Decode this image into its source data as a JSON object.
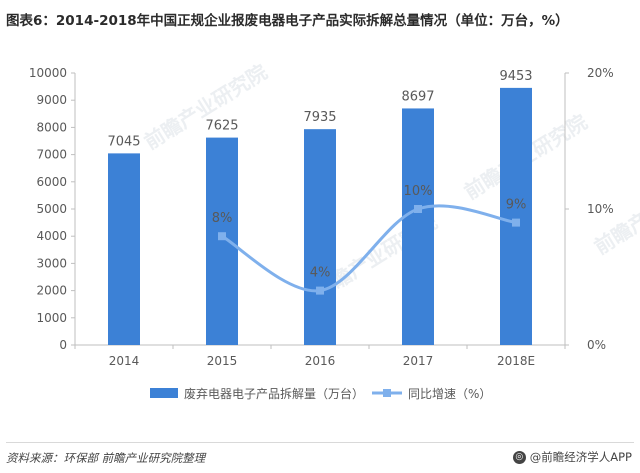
{
  "title": "图表6：2014-2018年中国正规企业报废电器电子产品实际拆解总量情况（单位：万台，%）",
  "source": "资料来源：环保部  前瞻产业研究院整理",
  "brand": "@前瞻经济学人APP",
  "watermark": "前瞻产业研究院",
  "colors": {
    "bar": "#3c81d6",
    "line": "#7fb0ec",
    "axis": "#bfbfbf",
    "text": "#595959"
  },
  "chart_data": {
    "type": "bar",
    "categories": [
      "2014",
      "2015",
      "2016",
      "2017",
      "2018E"
    ],
    "series": [
      {
        "name": "废弃电器电子产品拆解量（万台）",
        "type": "bar",
        "axis": "left",
        "values": [
          7045,
          7625,
          7935,
          8697,
          9453
        ],
        "labels": [
          "7045",
          "7625",
          "7935",
          "8697",
          "9453"
        ]
      },
      {
        "name": "同比增速（%）",
        "type": "line",
        "axis": "right",
        "smooth": true,
        "values": [
          null,
          8,
          4,
          10,
          9
        ],
        "labels": [
          "",
          "8%",
          "4%",
          "10%",
          "9%"
        ]
      }
    ],
    "y_left": {
      "min": 0,
      "max": 10000,
      "ticks": [
        "0",
        "1000",
        "2000",
        "3000",
        "4000",
        "5000",
        "6000",
        "7000",
        "8000",
        "9000",
        "10000"
      ]
    },
    "y_right": {
      "min": 0,
      "max": 20,
      "ticks": [
        "0%",
        "10%",
        "20%"
      ]
    },
    "legend_position": "bottom",
    "grid": false
  }
}
